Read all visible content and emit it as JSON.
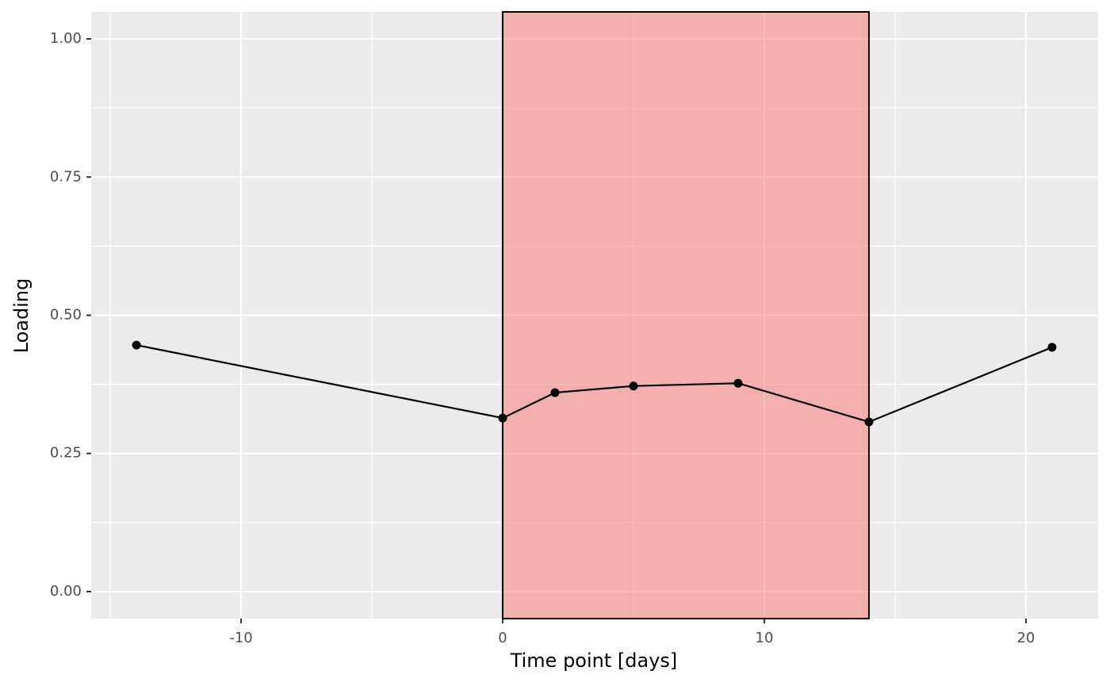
{
  "chart_data": {
    "type": "line",
    "x_label": "Time point [days]",
    "y_label": "Loading",
    "x": [
      -14,
      0,
      2,
      5,
      9,
      14,
      21
    ],
    "values": [
      0.446,
      0.314,
      0.36,
      0.372,
      0.377,
      0.307,
      0.442
    ],
    "color": "#000000",
    "shade": {
      "xmin": 0,
      "xmax": 14,
      "color": "#f8766d"
    },
    "xlim": [
      -15.73,
      22.76
    ],
    "xticks": [
      -10,
      0,
      10,
      20
    ],
    "xminor": [
      -15,
      -5,
      5,
      15
    ],
    "ylim": [
      -0.0488,
      1.0488
    ],
    "yticks": [
      {
        "value": 0,
        "label": "0.00"
      },
      {
        "value": 0.25,
        "label": "0.25"
      },
      {
        "value": 0.5,
        "label": "0.50"
      },
      {
        "value": 0.75,
        "label": "0.75"
      },
      {
        "value": 1,
        "label": "1.00"
      }
    ],
    "yminor": [
      0.125,
      0.375,
      0.625,
      0.875
    ],
    "grid": true
  }
}
